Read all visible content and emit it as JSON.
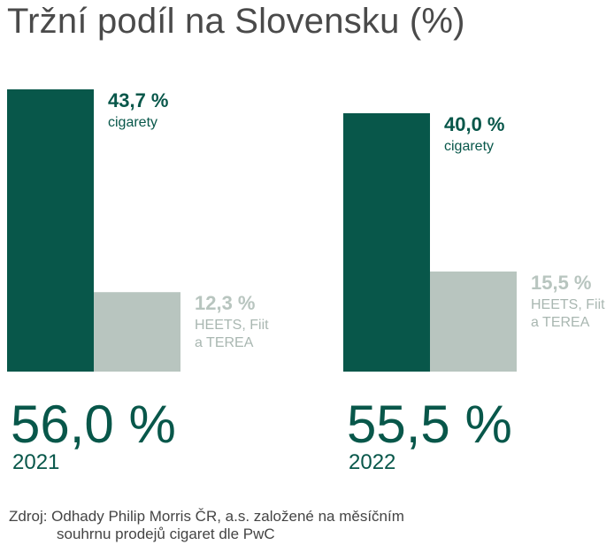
{
  "title": "Tržní podíl na Slovensku (%)",
  "colors": {
    "dark": "#08574a",
    "light": "#b8c5bf",
    "title": "#4a4a4a",
    "source": "#444444"
  },
  "chart_data": {
    "type": "bar",
    "title": "Tržní podíl na Slovensku (%)",
    "ylim": [
      0,
      45
    ],
    "groups": [
      {
        "year": "2021",
        "total": "56,0 %",
        "bars": [
          {
            "name": "cigarety",
            "value": 43.7,
            "label": "43,7 %",
            "lines": [
              "cigarety"
            ]
          },
          {
            "name": "HEETS, Fiit a TEREA",
            "value": 12.3,
            "label": "12,3 %",
            "lines": [
              "HEETS, Fiit",
              "a TEREA"
            ]
          }
        ]
      },
      {
        "year": "2022",
        "total": "55,5 %",
        "bars": [
          {
            "name": "cigarety",
            "value": 40.0,
            "label": "40,0 %",
            "lines": [
              "cigarety"
            ]
          },
          {
            "name": "HEETS, Fiit a TEREA",
            "value": 15.5,
            "label": "15,5 %",
            "lines": [
              "HEETS, Fiit",
              "a TEREA"
            ]
          }
        ]
      }
    ]
  },
  "source": {
    "line1": "Zdroj: Odhady Philip Morris ČR, a.s. založené na měsíčním",
    "line2": "souhrnu prodejů cigaret dle PwC"
  }
}
